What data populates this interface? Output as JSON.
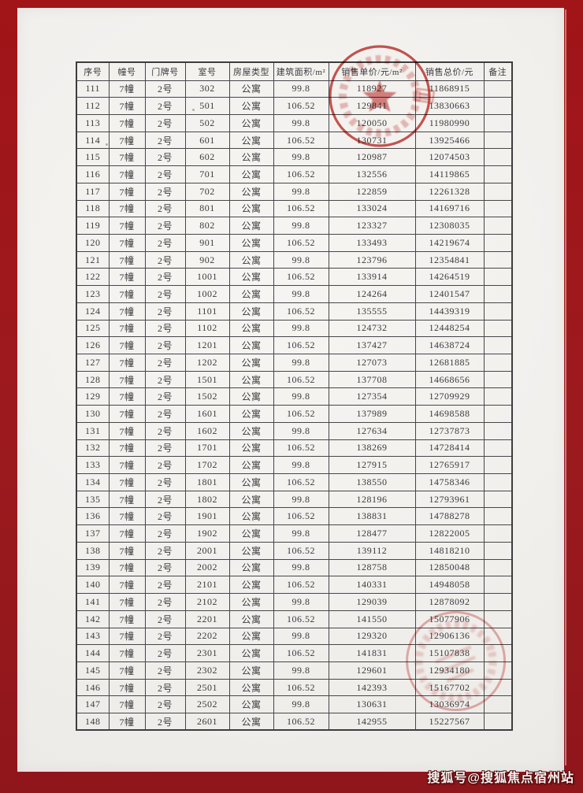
{
  "table": {
    "columns": [
      "序号",
      "幢号",
      "门牌号",
      "室号",
      "房屋类型",
      "建筑面积/m²",
      "销售单价/元/m²",
      "销售总价/元",
      "备注"
    ],
    "rows": [
      [
        "111",
        "7幢",
        "2号",
        "302",
        "公寓",
        "99.8",
        "118927",
        "11868915",
        ""
      ],
      [
        "112",
        "7幢",
        "2号",
        "501",
        "公寓",
        "106.52",
        "129841",
        "13830663",
        ""
      ],
      [
        "113",
        "7幢",
        "2号",
        "502",
        "公寓",
        "99.8",
        "120050",
        "11980990",
        ""
      ],
      [
        "114",
        "7幢",
        "2号",
        "601",
        "公寓",
        "106.52",
        "130731",
        "13925466",
        ""
      ],
      [
        "115",
        "7幢",
        "2号",
        "602",
        "公寓",
        "99.8",
        "120987",
        "12074503",
        ""
      ],
      [
        "116",
        "7幢",
        "2号",
        "701",
        "公寓",
        "106.52",
        "132556",
        "14119865",
        ""
      ],
      [
        "117",
        "7幢",
        "2号",
        "702",
        "公寓",
        "99.8",
        "122859",
        "12261328",
        ""
      ],
      [
        "118",
        "7幢",
        "2号",
        "801",
        "公寓",
        "106.52",
        "133024",
        "14169716",
        ""
      ],
      [
        "119",
        "7幢",
        "2号",
        "802",
        "公寓",
        "99.8",
        "123327",
        "12308035",
        ""
      ],
      [
        "120",
        "7幢",
        "2号",
        "901",
        "公寓",
        "106.52",
        "133493",
        "14219674",
        ""
      ],
      [
        "121",
        "7幢",
        "2号",
        "902",
        "公寓",
        "99.8",
        "123796",
        "12354841",
        ""
      ],
      [
        "122",
        "7幢",
        "2号",
        "1001",
        "公寓",
        "106.52",
        "133914",
        "14264519",
        ""
      ],
      [
        "123",
        "7幢",
        "2号",
        "1002",
        "公寓",
        "99.8",
        "124264",
        "12401547",
        ""
      ],
      [
        "124",
        "7幢",
        "2号",
        "1101",
        "公寓",
        "106.52",
        "135555",
        "14439319",
        ""
      ],
      [
        "125",
        "7幢",
        "2号",
        "1102",
        "公寓",
        "99.8",
        "124732",
        "12448254",
        ""
      ],
      [
        "126",
        "7幢",
        "2号",
        "1201",
        "公寓",
        "106.52",
        "137427",
        "14638724",
        ""
      ],
      [
        "127",
        "7幢",
        "2号",
        "1202",
        "公寓",
        "99.8",
        "127073",
        "12681885",
        ""
      ],
      [
        "128",
        "7幢",
        "2号",
        "1501",
        "公寓",
        "106.52",
        "137708",
        "14668656",
        ""
      ],
      [
        "129",
        "7幢",
        "2号",
        "1502",
        "公寓",
        "99.8",
        "127354",
        "12709929",
        ""
      ],
      [
        "130",
        "7幢",
        "2号",
        "1601",
        "公寓",
        "106.52",
        "137989",
        "14698588",
        ""
      ],
      [
        "131",
        "7幢",
        "2号",
        "1602",
        "公寓",
        "99.8",
        "127634",
        "12737873",
        ""
      ],
      [
        "132",
        "7幢",
        "2号",
        "1701",
        "公寓",
        "106.52",
        "138269",
        "14728414",
        ""
      ],
      [
        "133",
        "7幢",
        "2号",
        "1702",
        "公寓",
        "99.8",
        "127915",
        "12765917",
        ""
      ],
      [
        "134",
        "7幢",
        "2号",
        "1801",
        "公寓",
        "106.52",
        "138550",
        "14758346",
        ""
      ],
      [
        "135",
        "7幢",
        "2号",
        "1802",
        "公寓",
        "99.8",
        "128196",
        "12793961",
        ""
      ],
      [
        "136",
        "7幢",
        "2号",
        "1901",
        "公寓",
        "106.52",
        "138831",
        "14788278",
        ""
      ],
      [
        "137",
        "7幢",
        "2号",
        "1902",
        "公寓",
        "99.8",
        "128477",
        "12822005",
        ""
      ],
      [
        "138",
        "7幢",
        "2号",
        "2001",
        "公寓",
        "106.52",
        "139112",
        "14818210",
        ""
      ],
      [
        "139",
        "7幢",
        "2号",
        "2002",
        "公寓",
        "99.8",
        "128758",
        "12850048",
        ""
      ],
      [
        "140",
        "7幢",
        "2号",
        "2101",
        "公寓",
        "106.52",
        "140331",
        "14948058",
        ""
      ],
      [
        "141",
        "7幢",
        "2号",
        "2102",
        "公寓",
        "99.8",
        "129039",
        "12878092",
        ""
      ],
      [
        "142",
        "7幢",
        "2号",
        "2201",
        "公寓",
        "106.52",
        "141550",
        "15077906",
        ""
      ],
      [
        "143",
        "7幢",
        "2号",
        "2202",
        "公寓",
        "99.8",
        "129320",
        "12906136",
        ""
      ],
      [
        "144",
        "7幢",
        "2号",
        "2301",
        "公寓",
        "106.52",
        "141831",
        "15107838",
        ""
      ],
      [
        "145",
        "7幢",
        "2号",
        "2302",
        "公寓",
        "99.8",
        "129601",
        "12934180",
        ""
      ],
      [
        "146",
        "7幢",
        "2号",
        "2501",
        "公寓",
        "106.52",
        "142393",
        "15167702",
        ""
      ],
      [
        "147",
        "7幢",
        "2号",
        "2502",
        "公寓",
        "99.8",
        "130631",
        "13036974",
        ""
      ],
      [
        "148",
        "7幢",
        "2号",
        "2601",
        "公寓",
        "106.52",
        "142955",
        "15227567",
        ""
      ]
    ]
  },
  "stamps": [
    {
      "name": "official-round-seal-top",
      "style": "red circular seal with star, illegible ring text"
    },
    {
      "name": "official-round-seal-bottom",
      "style": "faint red circular seal, illegible text"
    }
  ],
  "watermark": {
    "text": "搜狐号@搜狐焦点宿州站"
  },
  "colors": {
    "frame_red": "#9c1a1e",
    "seal_red": "#c43a36",
    "page_bg": "#f3f1ee",
    "table_line": "#46464a"
  }
}
